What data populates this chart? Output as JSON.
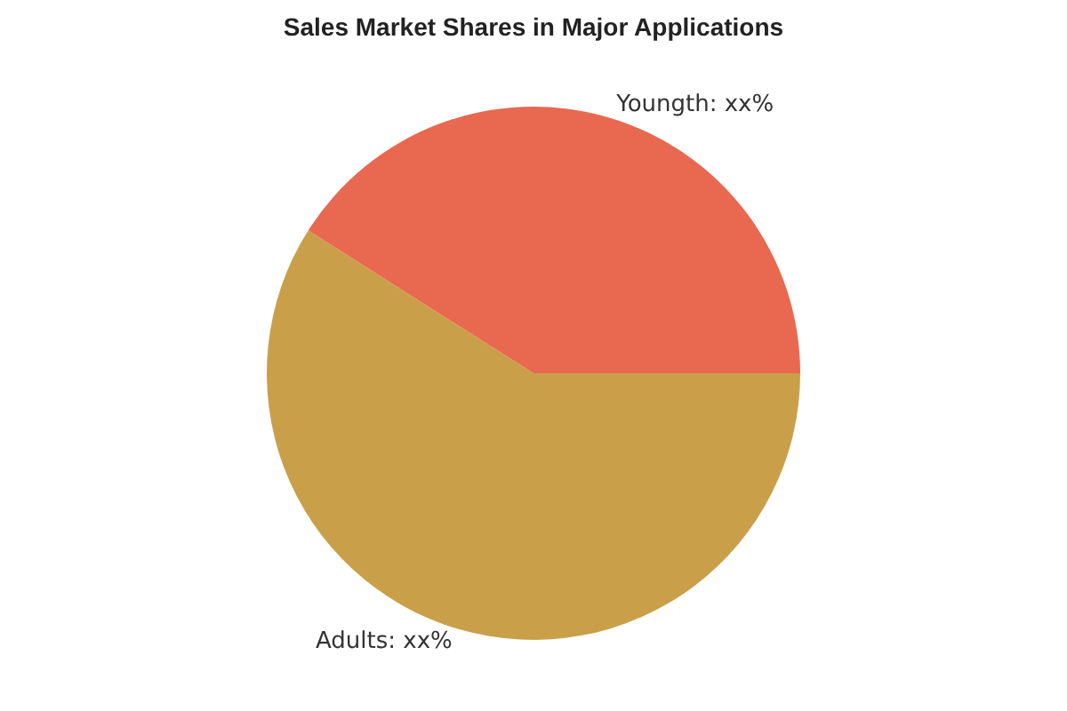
{
  "chart_data": {
    "type": "pie",
    "title": "Sales Market Shares in Major Applications",
    "categories": [
      "Adults",
      "Youngth"
    ],
    "values": [
      59,
      41
    ],
    "value_labels": [
      "xx%",
      "xx%"
    ],
    "colors": [
      "#c9a049",
      "#e8694f"
    ],
    "legend": false
  }
}
